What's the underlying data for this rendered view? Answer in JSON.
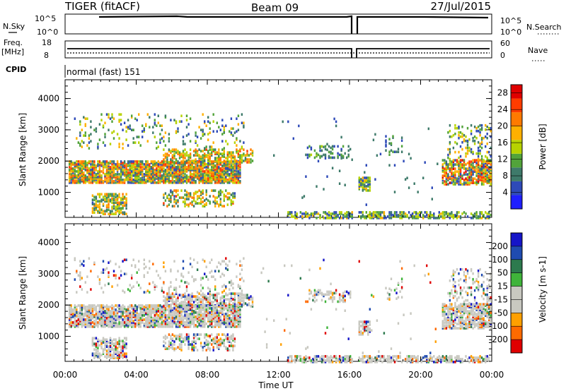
{
  "header": {
    "title": "TIGER (fitACF)",
    "beam": "Beam 09",
    "date": "27/Jul/2015"
  },
  "status_panels": {
    "nsky_label": "N.Sky",
    "nsearch_label": "N.Search",
    "noise_ticks_left": [
      "10^5",
      "10^0"
    ],
    "noise_ticks_right": [
      "10^5",
      "10^0"
    ],
    "freq_label": "Freq.",
    "freq_unit": "[MHz]",
    "freq_ticks": [
      "18",
      "8"
    ],
    "nave_label": "Nave",
    "nave_ticks": [
      "60",
      "0"
    ],
    "cpid_label": "CPID",
    "cpid_text": "normal (fast) 151"
  },
  "colors": {
    "power": [
      "#1f1fff",
      "#2e4ab8",
      "#3e7a6a",
      "#52a33a",
      "#b7d200",
      "#ffb000",
      "#ff7a00",
      "#ff3c00",
      "#e00000"
    ],
    "velocity": [
      "#1515c8",
      "#1f4bb0",
      "#2d7a4e",
      "#3fb43a",
      "#c8c8c0",
      "#c8c8c0",
      "#ffa000",
      "#ff6a00",
      "#e00000"
    ]
  },
  "chart_data": [
    {
      "type": "heatmap",
      "ylabel": "Slant Range [km]",
      "yticks": [
        "1000",
        "2000",
        "3000",
        "4000"
      ],
      "ylim": [
        200,
        4600
      ],
      "xlim": [
        "00:00",
        "24:00"
      ],
      "colorbar_label": "Power [dB]",
      "colorbar_ticks": [
        "4",
        "8",
        "12",
        "16",
        "20",
        "24",
        "28"
      ],
      "colorbar_range": [
        0,
        30
      ]
    },
    {
      "type": "heatmap",
      "ylabel": "Slant Range [km]",
      "yticks": [
        "1000",
        "2000",
        "3000",
        "4000"
      ],
      "ylim": [
        200,
        4600
      ],
      "xlim": [
        "00:00",
        "24:00"
      ],
      "xlabel": "Time UT",
      "xticks": [
        "00:00",
        "04:00",
        "08:00",
        "12:00",
        "16:00",
        "20:00",
        "00:00"
      ],
      "colorbar_label": "Velocity [m s-1]",
      "colorbar_ticks": [
        "200",
        "100",
        "50",
        "15",
        "-15",
        "-50",
        "-100",
        "-200"
      ]
    }
  ]
}
